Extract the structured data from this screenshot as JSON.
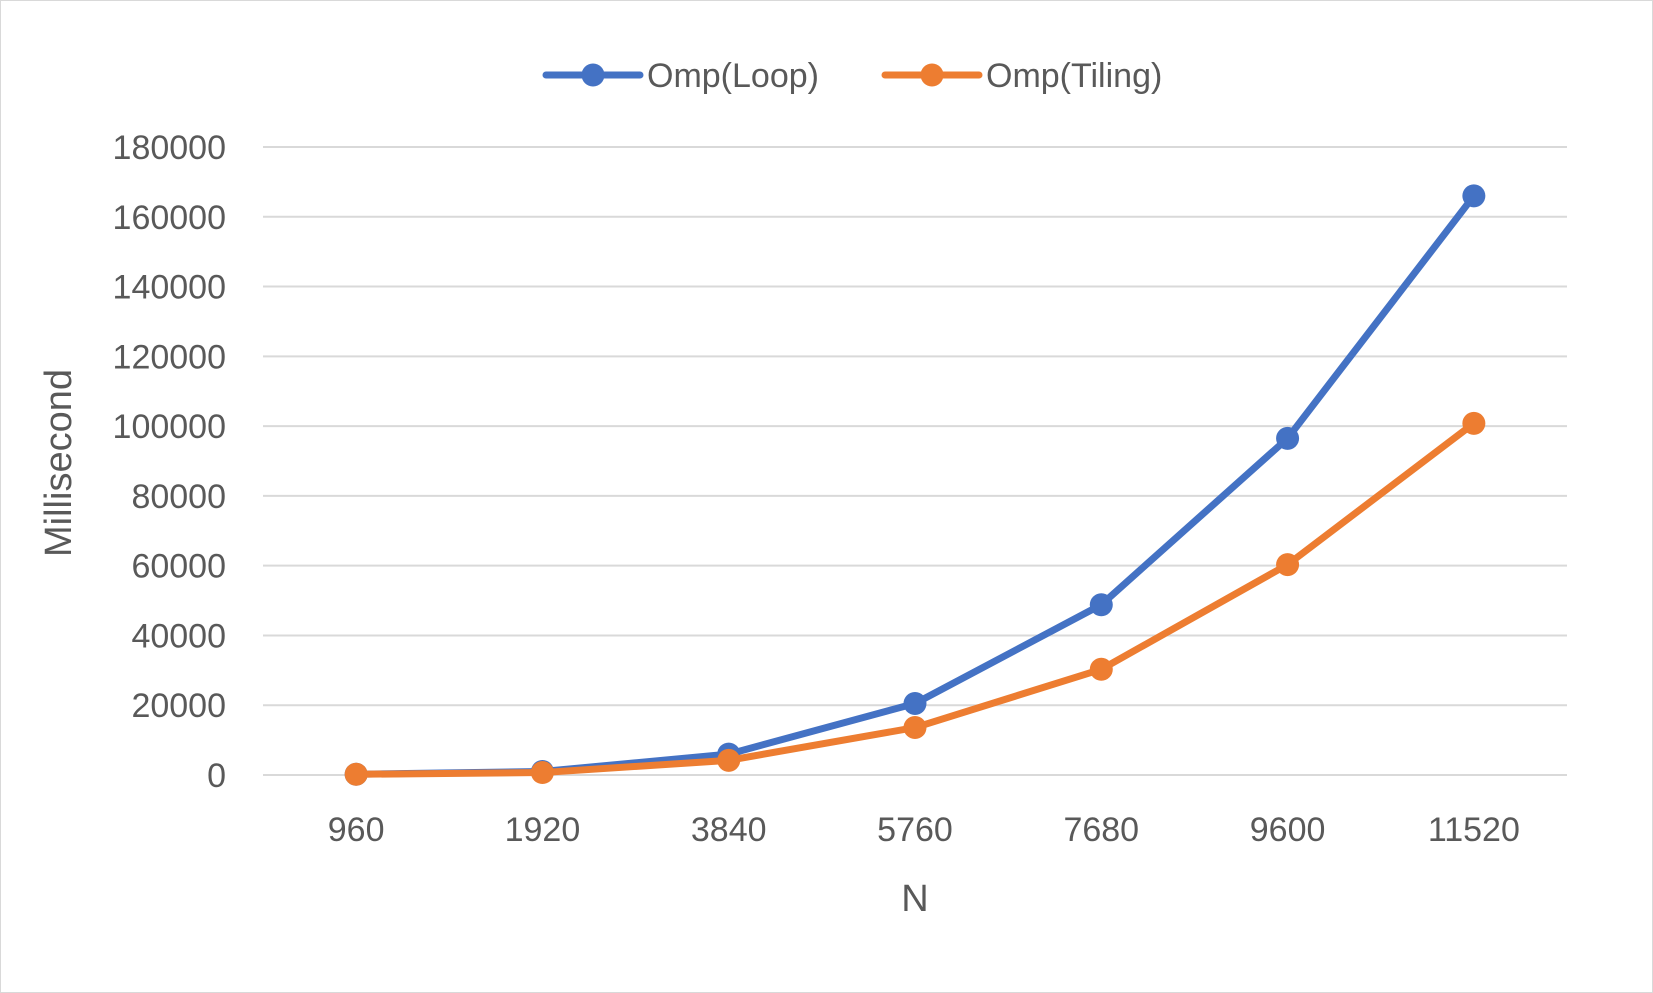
{
  "chart_data": {
    "type": "line",
    "categories": [
      "960",
      "1920",
      "3840",
      "5760",
      "7680",
      "9600",
      "11520"
    ],
    "series": [
      {
        "name": "Omp(Loop)",
        "color": "#4472c4",
        "values": [
          200,
          1000,
          6000,
          20500,
          48800,
          96500,
          166000
        ]
      },
      {
        "name": "Omp(Tiling)",
        "color": "#ed7d31",
        "values": [
          200,
          700,
          4200,
          13600,
          30300,
          60300,
          100800
        ]
      }
    ],
    "title": "",
    "xlabel": "N",
    "ylabel": "Millisecond",
    "ylim": [
      0,
      180000
    ],
    "yticks": [
      "0",
      "20000",
      "40000",
      "60000",
      "80000",
      "100000",
      "120000",
      "140000",
      "160000",
      "180000"
    ],
    "grid": true,
    "legend_position": "top"
  }
}
